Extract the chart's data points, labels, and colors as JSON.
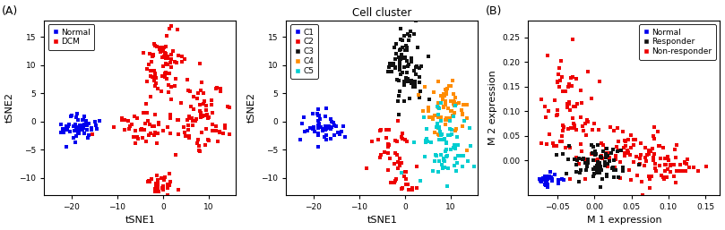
{
  "panel_A": {
    "label": "(A)",
    "xlabel": "tSNE1",
    "ylabel": "tSNE2",
    "xlim": [
      -26,
      16
    ],
    "ylim": [
      -13,
      18
    ],
    "xticks": [
      -20,
      -10,
      0,
      10
    ],
    "yticks": [
      -10,
      -5,
      0,
      5,
      10,
      15
    ],
    "groups": [
      "Normal",
      "DCM"
    ],
    "colors": [
      "#0000EE",
      "#EE0000"
    ]
  },
  "panel_B": {
    "title": "Cell cluster",
    "xlabel": "tSNE1",
    "ylabel": "tSNE2",
    "xlim": [
      -26,
      16
    ],
    "ylim": [
      -13,
      18
    ],
    "xticks": [
      -20,
      -10,
      0,
      10
    ],
    "yticks": [
      -10,
      -5,
      0,
      5,
      10,
      15
    ],
    "groups": [
      "C1",
      "C2",
      "C3",
      "C4",
      "C5"
    ],
    "colors": [
      "#0000EE",
      "#EE0000",
      "#111111",
      "#FF8C00",
      "#00CED1"
    ]
  },
  "panel_C": {
    "label": "(B)",
    "xlabel": "M 1 expression",
    "ylabel": "M 2 expression",
    "xlim": [
      -0.09,
      0.17
    ],
    "ylim": [
      -0.07,
      0.285
    ],
    "xticks": [
      -0.05,
      0.0,
      0.05,
      0.1,
      0.15
    ],
    "yticks": [
      0.0,
      0.05,
      0.1,
      0.15,
      0.2,
      0.25
    ],
    "groups": [
      "Normal",
      "Responder",
      "Non-responder"
    ],
    "colors": [
      "#0000EE",
      "#111111",
      "#EE0000"
    ]
  },
  "figsize": [
    8.09,
    2.57
  ],
  "dpi": 100
}
